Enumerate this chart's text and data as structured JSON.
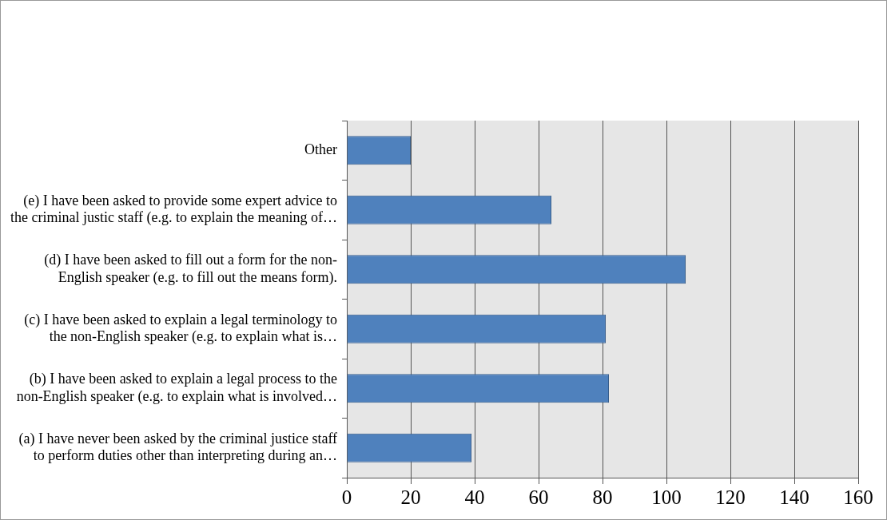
{
  "chart_data": {
    "type": "bar",
    "orientation": "horizontal",
    "categories": [
      "Other",
      "(e) I have been asked to provide some expert advice to\nthe criminal justic staff (e.g. to explain the meaning of…",
      "(d) I have been asked to fill out a form for the non-\nEnglish speaker (e.g. to fill out the means form).",
      "(c) I have been asked to explain a legal terminology to\nthe non-English speaker (e.g. to explain what is…",
      "(b) I have been asked to explain a legal process to the\nnon-English speaker (e.g. to explain what is involved…",
      "(a) I have never been asked by the criminal justice staff\nto perform duties other than interpreting during an…"
    ],
    "values": [
      20,
      64,
      106,
      81,
      82,
      39
    ],
    "color": "#4f81bd",
    "xlim": [
      0,
      160
    ],
    "xticks": [
      0,
      20,
      40,
      60,
      80,
      100,
      120,
      140,
      160
    ],
    "grid": "x",
    "legend": false
  }
}
